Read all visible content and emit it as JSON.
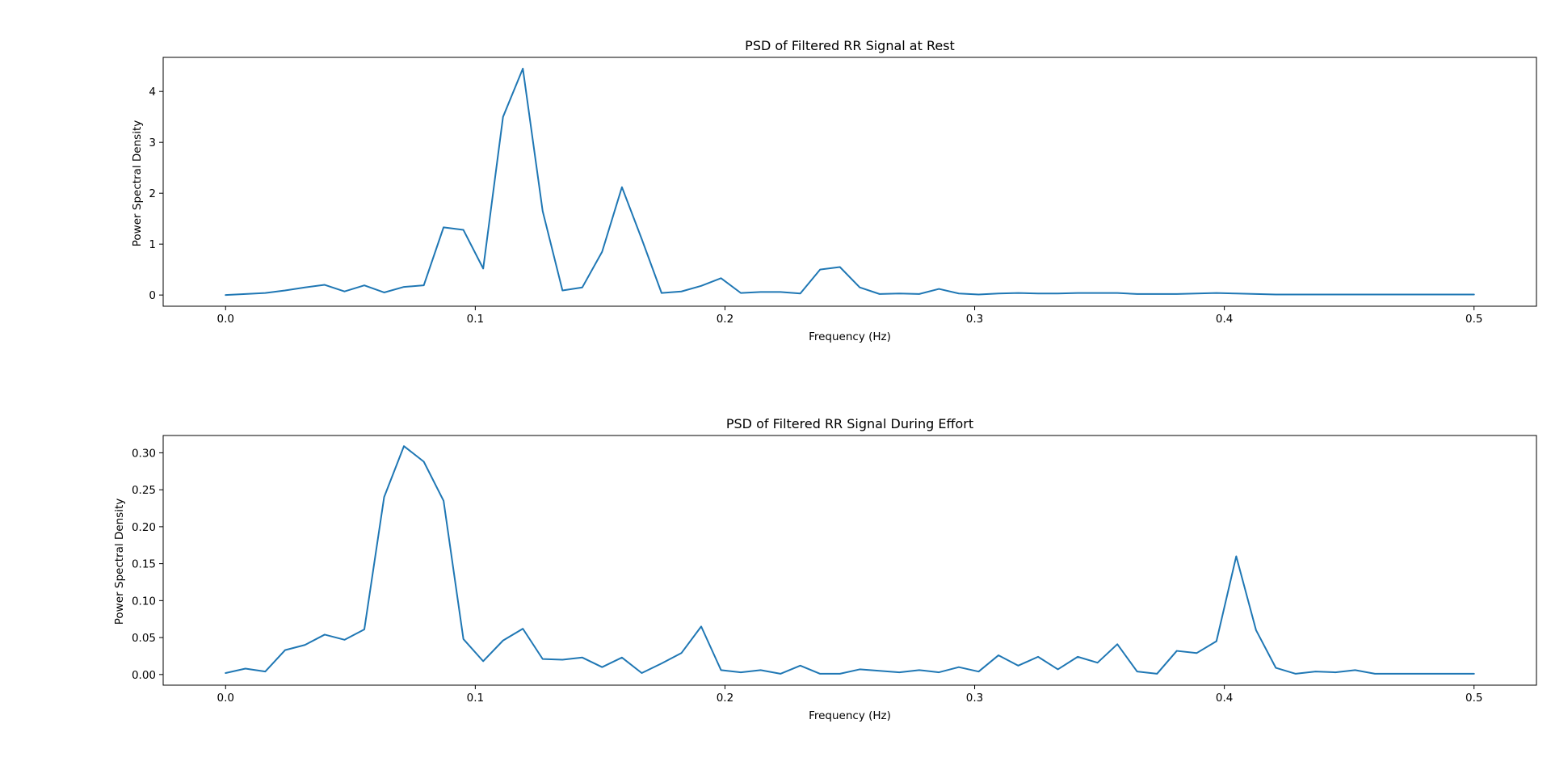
{
  "chart_data": [
    {
      "type": "line",
      "title": "PSD of Filtered RR Signal at Rest",
      "xlabel": "Frequency (Hz)",
      "ylabel": "Power Spectral Density",
      "xlim": [
        -0.025,
        0.525
      ],
      "ylim": [
        -0.22,
        4.67
      ],
      "xticks": [
        0.0,
        0.1,
        0.2,
        0.3,
        0.4,
        0.5
      ],
      "xtick_labels": [
        "0.0",
        "0.1",
        "0.2",
        "0.3",
        "0.4",
        "0.5"
      ],
      "yticks": [
        0,
        1,
        2,
        3,
        4
      ],
      "ytick_labels": [
        "0",
        "1",
        "2",
        "3",
        "4"
      ],
      "grid": false,
      "line_color": "#1f77b4",
      "series": [
        {
          "x": [
            0.0,
            0.00794,
            0.01587,
            0.02381,
            0.03175,
            0.03968,
            0.04762,
            0.05556,
            0.06349,
            0.07143,
            0.07937,
            0.0873,
            0.09524,
            0.10317,
            0.11111,
            0.11905,
            0.12698,
            0.13492,
            0.14286,
            0.15079,
            0.15873,
            0.16667,
            0.1746,
            0.18254,
            0.19048,
            0.19841,
            0.20635,
            0.21429,
            0.22222,
            0.23016,
            0.2381,
            0.24603,
            0.25397,
            0.2619,
            0.26984,
            0.27778,
            0.28571,
            0.29365,
            0.30159,
            0.30952,
            0.31746,
            0.3254,
            0.33333,
            0.34127,
            0.34921,
            0.35714,
            0.36508,
            0.37302,
            0.38095,
            0.38889,
            0.39683,
            0.40476,
            0.4127,
            0.42063,
            0.42857,
            0.43651,
            0.44444,
            0.45238,
            0.46032,
            0.46825,
            0.47619,
            0.48413,
            0.49206,
            0.5
          ],
          "y": [
            0.0,
            0.02,
            0.04,
            0.09,
            0.15,
            0.2,
            0.07,
            0.19,
            0.05,
            0.16,
            0.19,
            1.33,
            1.28,
            0.52,
            3.5,
            4.45,
            1.65,
            0.09,
            0.15,
            0.85,
            2.12,
            1.1,
            0.04,
            0.07,
            0.18,
            0.33,
            0.04,
            0.06,
            0.06,
            0.03,
            0.5,
            0.55,
            0.15,
            0.02,
            0.03,
            0.02,
            0.12,
            0.03,
            0.01,
            0.03,
            0.04,
            0.03,
            0.03,
            0.04,
            0.04,
            0.04,
            0.02,
            0.02,
            0.02,
            0.03,
            0.04,
            0.03,
            0.02,
            0.01,
            0.01,
            0.01,
            0.01,
            0.01,
            0.01,
            0.01,
            0.01,
            0.01,
            0.01,
            0.01
          ]
        }
      ]
    },
    {
      "type": "line",
      "title": "PSD of Filtered RR Signal During Effort",
      "xlabel": "Frequency (Hz)",
      "ylabel": "Power Spectral Density",
      "xlim": [
        -0.025,
        0.525
      ],
      "ylim": [
        -0.0144,
        0.3234
      ],
      "xticks": [
        0.0,
        0.1,
        0.2,
        0.3,
        0.4,
        0.5
      ],
      "xtick_labels": [
        "0.0",
        "0.1",
        "0.2",
        "0.3",
        "0.4",
        "0.5"
      ],
      "yticks": [
        0.0,
        0.05,
        0.1,
        0.15,
        0.2,
        0.25,
        0.3
      ],
      "ytick_labels": [
        "0.00",
        "0.05",
        "0.10",
        "0.15",
        "0.20",
        "0.25",
        "0.30"
      ],
      "grid": false,
      "line_color": "#1f77b4",
      "series": [
        {
          "x": [
            0.0,
            0.00794,
            0.01587,
            0.02381,
            0.03175,
            0.03968,
            0.04762,
            0.05556,
            0.06349,
            0.07143,
            0.07937,
            0.0873,
            0.09524,
            0.10317,
            0.11111,
            0.11905,
            0.12698,
            0.13492,
            0.14286,
            0.15079,
            0.15873,
            0.16667,
            0.1746,
            0.18254,
            0.19048,
            0.19841,
            0.20635,
            0.21429,
            0.22222,
            0.23016,
            0.2381,
            0.24603,
            0.25397,
            0.2619,
            0.26984,
            0.27778,
            0.28571,
            0.29365,
            0.30159,
            0.30952,
            0.31746,
            0.3254,
            0.33333,
            0.34127,
            0.34921,
            0.35714,
            0.36508,
            0.37302,
            0.38095,
            0.38889,
            0.39683,
            0.40476,
            0.4127,
            0.42063,
            0.42857,
            0.43651,
            0.44444,
            0.45238,
            0.46032,
            0.46825,
            0.47619,
            0.48413,
            0.49206,
            0.5
          ],
          "y": [
            0.002,
            0.008,
            0.004,
            0.033,
            0.04,
            0.054,
            0.047,
            0.061,
            0.24,
            0.309,
            0.288,
            0.235,
            0.048,
            0.018,
            0.046,
            0.062,
            0.021,
            0.02,
            0.023,
            0.01,
            0.023,
            0.002,
            0.015,
            0.029,
            0.065,
            0.006,
            0.003,
            0.006,
            0.001,
            0.012,
            0.001,
            0.001,
            0.007,
            0.005,
            0.003,
            0.006,
            0.003,
            0.01,
            0.004,
            0.026,
            0.012,
            0.024,
            0.007,
            0.024,
            0.016,
            0.041,
            0.004,
            0.001,
            0.032,
            0.029,
            0.045,
            0.16,
            0.06,
            0.009,
            0.001,
            0.004,
            0.003,
            0.006,
            0.001,
            0.001,
            0.001,
            0.001,
            0.001,
            0.001
          ]
        }
      ]
    }
  ]
}
